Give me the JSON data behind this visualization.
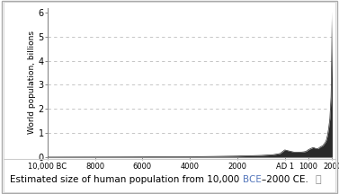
{
  "title": "",
  "ylabel": "World population, billions",
  "ylim": [
    0,
    6.2
  ],
  "yticks": [
    0,
    1,
    2,
    3,
    4,
    5,
    6
  ],
  "fill_color": "#2a2a2a",
  "line_color": "#2a2a2a",
  "plot_bg_color": "#ffffff",
  "fig_bg_color": "#ffffff",
  "grid_color": "#bbbbbb",
  "caption_color_normal": "#000000",
  "caption_color_highlight": "#5577bb",
  "population_data": [
    [
      -10000,
      0.001
    ],
    [
      -9500,
      0.002
    ],
    [
      -9000,
      0.003
    ],
    [
      -8000,
      0.005
    ],
    [
      -7000,
      0.007
    ],
    [
      -6000,
      0.01
    ],
    [
      -5000,
      0.015
    ],
    [
      -4000,
      0.02
    ],
    [
      -3000,
      0.03
    ],
    [
      -2000,
      0.045
    ],
    [
      -1000,
      0.072
    ],
    [
      -500,
      0.1
    ],
    [
      -200,
      0.15
    ],
    [
      1,
      0.3
    ],
    [
      200,
      0.25
    ],
    [
      400,
      0.206
    ],
    [
      600,
      0.208
    ],
    [
      700,
      0.21
    ],
    [
      800,
      0.22
    ],
    [
      900,
      0.24
    ],
    [
      1000,
      0.31
    ],
    [
      1100,
      0.36
    ],
    [
      1200,
      0.4
    ],
    [
      1300,
      0.36
    ],
    [
      1400,
      0.35
    ],
    [
      1500,
      0.425
    ],
    [
      1600,
      0.475
    ],
    [
      1700,
      0.6
    ],
    [
      1750,
      0.7
    ],
    [
      1800,
      0.9
    ],
    [
      1850,
      1.2
    ],
    [
      1900,
      1.6
    ],
    [
      1950,
      2.5
    ],
    [
      1960,
      3.0
    ],
    [
      1970,
      3.7
    ],
    [
      1980,
      4.4
    ],
    [
      1990,
      5.3
    ],
    [
      2000,
      6.06
    ]
  ],
  "xtick_positions": [
    -10000,
    -8000,
    -6000,
    -4000,
    -2000,
    1,
    1000,
    2000
  ],
  "xtick_labels": [
    "10,000 BC",
    "8000",
    "6000",
    "4000",
    "2000",
    "AD 1",
    "1000",
    "2000"
  ],
  "caption_parts": [
    {
      "text": "Estimated size of human population from 10,000 ",
      "color": "#000000"
    },
    {
      "text": "BCE",
      "color": "#5577bb"
    },
    {
      "text": "–2000 CE.",
      "color": "#000000"
    }
  ]
}
